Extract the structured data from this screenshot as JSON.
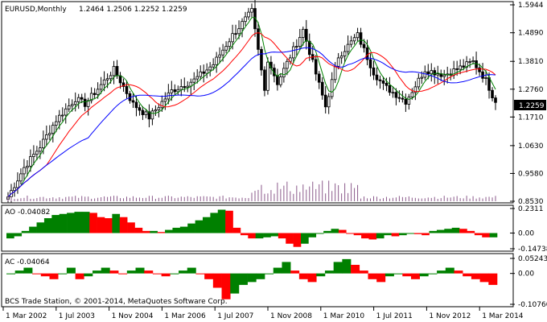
{
  "header": {
    "symbol_text": "EURUSD,Monthly",
    "ohlc_text": "1.2464 1.2506 1.2252 1.2259"
  },
  "ao_label": "AO -0.04082",
  "ac_label": "AC -0.04064",
  "copyright": "BCS Trade Station, © 2001-2014, MetaQuotes Software Corp.",
  "price_tag": "1.2259",
  "colors": {
    "up_bar": "#008000",
    "down_bar": "#ff0000",
    "ma_fast": "#008000",
    "ma_mid": "#ff0000",
    "ma_slow": "#0000ff",
    "volume": "#8b5a8b",
    "grid": "#000000"
  },
  "chart_data": [
    {
      "type": "candlestick",
      "symbol": "EURUSD",
      "timeframe": "Monthly",
      "x_tick_labels": [
        "1 Mar 2002",
        "1 Jul 2003",
        "1 Nov 2004",
        "1 Mar 2006",
        "1 Jul 2007",
        "1 Nov 2008",
        "1 Mar 2010",
        "1 Jul 2011",
        "1 Nov 2012",
        "1 Mar 2014"
      ],
      "y_tick_labels": [
        "1.5944",
        "1.4890",
        "1.3810",
        "1.2760",
        "1.1710",
        "1.0630",
        "0.9580",
        "0.8530"
      ],
      "ylim": [
        0.853,
        1.5944
      ],
      "last_price": 1.2259,
      "series_close_keypoints": [
        {
          "date": "2002-03",
          "value": 0.87
        },
        {
          "date": "2002-08",
          "value": 0.98
        },
        {
          "date": "2003-01",
          "value": 1.06
        },
        {
          "date": "2003-06",
          "value": 1.16
        },
        {
          "date": "2003-12",
          "value": 1.24
        },
        {
          "date": "2004-03",
          "value": 1.22
        },
        {
          "date": "2004-12",
          "value": 1.35
        },
        {
          "date": "2005-06",
          "value": 1.22
        },
        {
          "date": "2005-11",
          "value": 1.17
        },
        {
          "date": "2006-06",
          "value": 1.27
        },
        {
          "date": "2007-01",
          "value": 1.31
        },
        {
          "date": "2007-07",
          "value": 1.37
        },
        {
          "date": "2008-01",
          "value": 1.48
        },
        {
          "date": "2008-07",
          "value": 1.57
        },
        {
          "date": "2008-11",
          "value": 1.27
        },
        {
          "date": "2008-12",
          "value": 1.39
        },
        {
          "date": "2009-03",
          "value": 1.3
        },
        {
          "date": "2009-11",
          "value": 1.5
        },
        {
          "date": "2010-06",
          "value": 1.21
        },
        {
          "date": "2010-10",
          "value": 1.4
        },
        {
          "date": "2011-04",
          "value": 1.48
        },
        {
          "date": "2011-09",
          "value": 1.34
        },
        {
          "date": "2011-12",
          "value": 1.29
        },
        {
          "date": "2012-07",
          "value": 1.23
        },
        {
          "date": "2013-01",
          "value": 1.35
        },
        {
          "date": "2013-07",
          "value": 1.33
        },
        {
          "date": "2014-04",
          "value": 1.38
        },
        {
          "date": "2014-08",
          "value": 1.31
        },
        {
          "date": "2014-11",
          "value": 1.2259
        }
      ]
    },
    {
      "type": "bar",
      "title": "AO",
      "last_value": -0.04082,
      "y_tick_labels": [
        "0.2311",
        "0.00",
        "-0.14738"
      ],
      "ylim": [
        -0.14738,
        0.2311
      ],
      "values": [
        -0.05,
        -0.03,
        0.02,
        0.06,
        0.1,
        0.14,
        0.17,
        0.18,
        0.19,
        0.2,
        0.2,
        0.19,
        0.15,
        0.14,
        0.18,
        0.15,
        0.1,
        0.05,
        0.02,
        0.02,
        0.01,
        0.03,
        0.05,
        0.06,
        0.09,
        0.12,
        0.15,
        0.19,
        0.22,
        0.21,
        0.05,
        -0.02,
        -0.05,
        -0.05,
        -0.04,
        -0.03,
        -0.05,
        -0.1,
        -0.13,
        -0.1,
        -0.04,
        0.0,
        0.02,
        0.04,
        0.03,
        0.0,
        -0.02,
        -0.05,
        -0.06,
        -0.05,
        -0.02,
        -0.03,
        -0.02,
        0.0,
        -0.01,
        -0.02,
        0.02,
        0.03,
        0.04,
        0.05,
        0.04,
        0.02,
        -0.02,
        -0.04,
        -0.04
      ]
    },
    {
      "type": "bar",
      "title": "AC",
      "last_value": -0.04064,
      "y_tick_labels": [
        "0.052432",
        "0.00",
        "-0.10760"
      ],
      "ylim": [
        -0.1076,
        0.052432
      ],
      "values": [
        0.0,
        0.01,
        0.02,
        0.0,
        -0.01,
        -0.02,
        0.0,
        0.02,
        -0.02,
        -0.01,
        0.01,
        0.02,
        0.01,
        0.0,
        0.01,
        0.02,
        0.01,
        0.0,
        -0.01,
        0.0,
        0.01,
        0.02,
        0.0,
        -0.02,
        -0.05,
        -0.09,
        -0.07,
        -0.04,
        -0.03,
        -0.02,
        0.0,
        0.02,
        0.04,
        0.01,
        -0.02,
        -0.03,
        -0.01,
        0.01,
        0.04,
        0.05,
        0.03,
        0.01,
        -0.02,
        -0.03,
        -0.01,
        0.0,
        -0.01,
        -0.02,
        -0.01,
        0.0,
        0.01,
        0.02,
        0.01,
        -0.01,
        -0.02,
        -0.03,
        -0.04
      ]
    }
  ]
}
